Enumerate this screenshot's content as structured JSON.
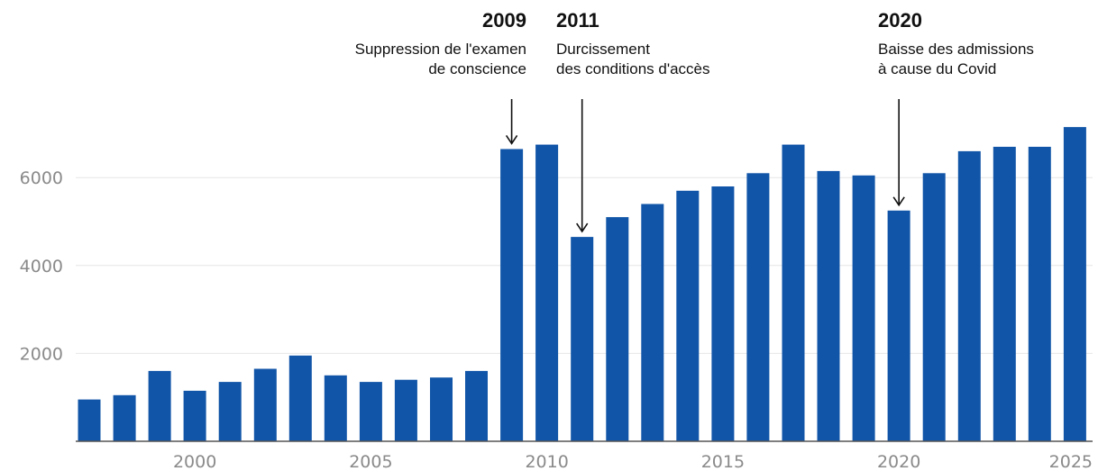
{
  "chart_data": {
    "type": "bar",
    "title": "",
    "xlabel": "",
    "ylabel": "",
    "ylim": [
      0,
      7600
    ],
    "grid": true,
    "color": "#1155a8",
    "x_ticks": [
      "2000",
      "2005",
      "2010",
      "2015",
      "2020",
      "2025"
    ],
    "y_ticks": [
      "2000",
      "4000",
      "6000"
    ],
    "categories": [
      1997,
      1998,
      1999,
      2000,
      2001,
      2002,
      2003,
      2004,
      2005,
      2006,
      2007,
      2008,
      2009,
      2010,
      2011,
      2012,
      2013,
      2014,
      2015,
      2016,
      2017,
      2018,
      2019,
      2020,
      2021,
      2022,
      2023,
      2024,
      2025
    ],
    "values": [
      950,
      1050,
      1600,
      1150,
      1350,
      1650,
      1950,
      1500,
      1350,
      1400,
      1450,
      1600,
      6650,
      6750,
      4650,
      5100,
      5400,
      5700,
      5800,
      6100,
      6750,
      6150,
      6050,
      5250,
      6100,
      6600,
      6700,
      6700,
      7150
    ],
    "annotations": [
      {
        "year": "2009",
        "lines": [
          "Suppression de l'examen",
          "de conscience"
        ],
        "target": 2009
      },
      {
        "year": "2011",
        "lines": [
          "Durcissement",
          "des conditions d'accès"
        ],
        "target": 2011
      },
      {
        "year": "2020",
        "lines": [
          "Baisse des admissions",
          "à cause du Covid"
        ],
        "target": 2020
      }
    ]
  }
}
